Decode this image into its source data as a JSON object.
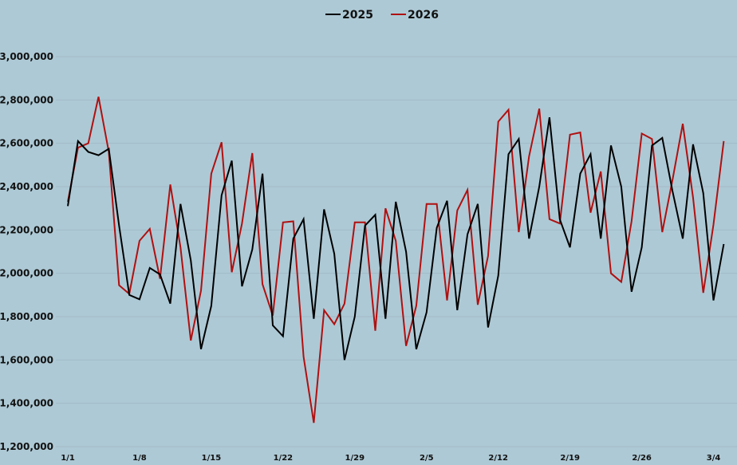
{
  "chart_data": {
    "type": "line",
    "title": "",
    "xlabel": "",
    "ylabel": "",
    "ylim": [
      1200000,
      3000000
    ],
    "yticks": [
      1200000,
      1400000,
      1600000,
      1800000,
      2000000,
      2200000,
      2400000,
      2600000,
      2800000,
      3000000
    ],
    "ytick_labels": [
      "1,200,000",
      "1,400,000",
      "1,600,000",
      "1,800,000",
      "2,000,000",
      "2,200,000",
      "2,400,000",
      "2,600,000",
      "2,800,000",
      "3,000,000"
    ],
    "x_tick_labels": [
      "1/1",
      "1/8",
      "1/15",
      "1/22",
      "1/29",
      "2/5",
      "2/12",
      "2/19",
      "2/26",
      "3/4"
    ],
    "x_tick_interval_days": 7,
    "grid": true,
    "legend_position": "top-center",
    "series": [
      {
        "name": "2025",
        "color": "#000000",
        "values": [
          2310000,
          2610000,
          2560000,
          2545000,
          2575000,
          2220000,
          1900000,
          1880000,
          2025000,
          1995000,
          1860000,
          2320000,
          2060000,
          1650000,
          1850000,
          2360000,
          2520000,
          1940000,
          2110000,
          2460000,
          1760000,
          1710000,
          2160000,
          2250000,
          1790000,
          2295000,
          2090000,
          1600000,
          1800000,
          2220000,
          2270000,
          1790000,
          2330000,
          2100000,
          1650000,
          1820000,
          2210000,
          2335000,
          1830000,
          2180000,
          2320000,
          1750000,
          1990000,
          2550000,
          2620000,
          2160000,
          2400000,
          2720000,
          2250000,
          2120000,
          2460000,
          2550000,
          2160000,
          2590000,
          2400000,
          1915000,
          2120000,
          2590000,
          2625000,
          2380000,
          2160000,
          2595000,
          2370000,
          1875000,
          2135000
        ]
      },
      {
        "name": "2026",
        "color": "#b01010",
        "values": [
          2330000,
          2580000,
          2600000,
          2815000,
          2560000,
          1945000,
          1905000,
          2150000,
          2205000,
          1975000,
          2410000,
          2120000,
          1690000,
          1920000,
          2460000,
          2605000,
          2005000,
          2230000,
          2555000,
          1950000,
          1805000,
          2235000,
          2240000,
          1615000,
          1310000,
          1830000,
          1765000,
          1860000,
          2235000,
          2235000,
          1735000,
          2300000,
          2150000,
          1665000,
          1850000,
          2320000,
          2320000,
          1875000,
          2290000,
          2385000,
          1855000,
          2080000,
          2700000,
          2755000,
          2190000,
          2540000,
          2760000,
          2250000,
          2230000,
          2640000,
          2650000,
          2280000,
          2470000,
          2000000,
          1960000,
          2240000,
          2645000,
          2620000,
          2190000,
          2430000,
          2690000,
          2350000,
          1910000,
          2225000,
          2610000
        ]
      }
    ]
  }
}
